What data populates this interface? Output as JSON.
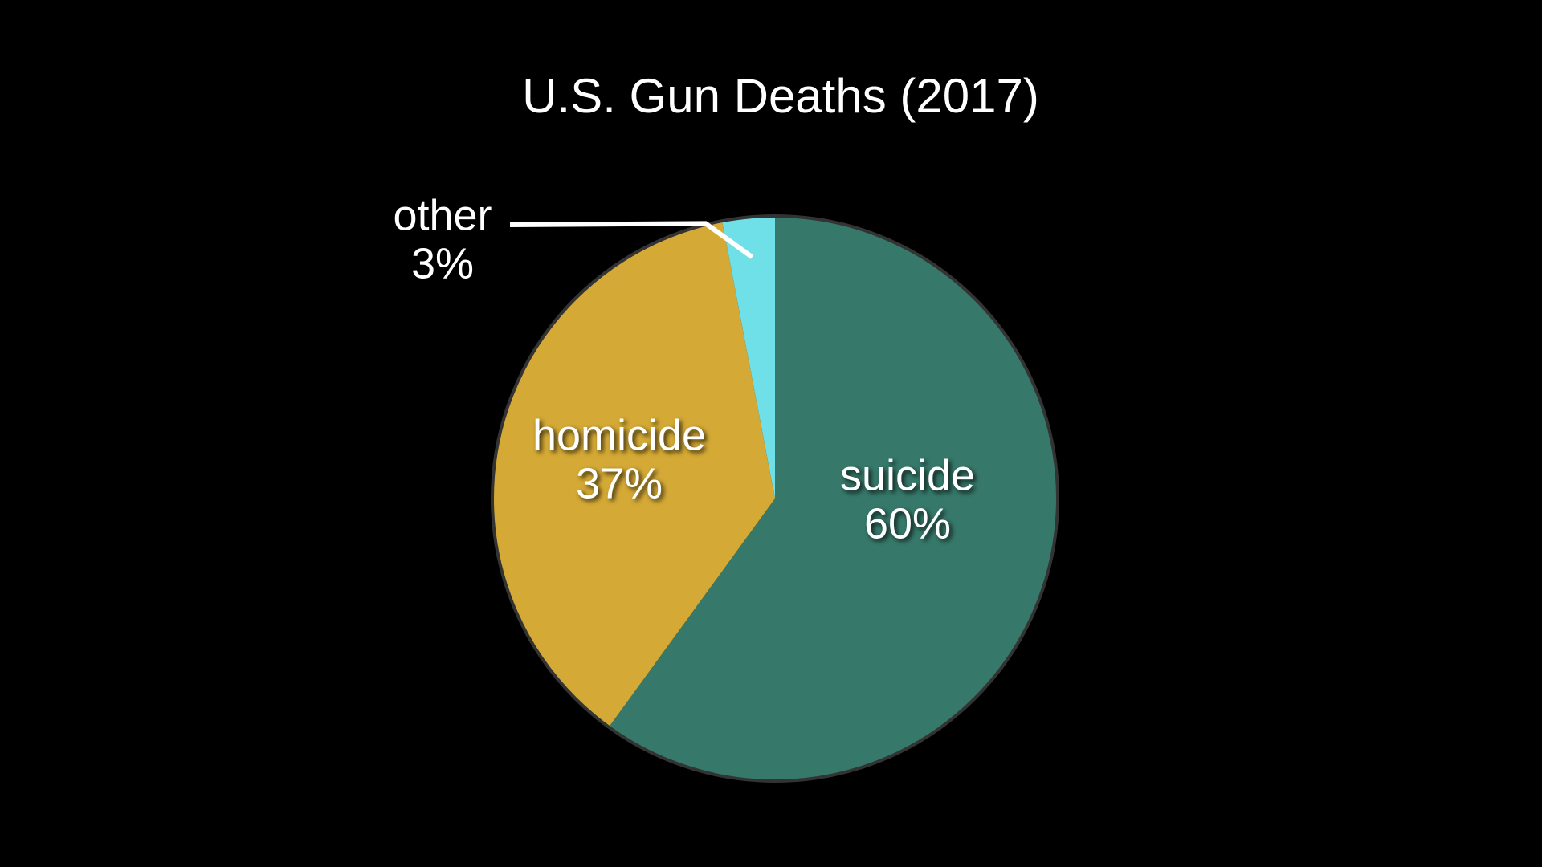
{
  "chart_data": {
    "type": "pie",
    "title": "U.S. Gun Deaths (2017)",
    "categories": [
      "suicide",
      "homicide",
      "other"
    ],
    "values": [
      60,
      37,
      3
    ],
    "value_labels": [
      "60%",
      "37%",
      "3%"
    ],
    "colors": [
      "#36786a",
      "#d4a935",
      "#6fe0e8"
    ]
  }
}
